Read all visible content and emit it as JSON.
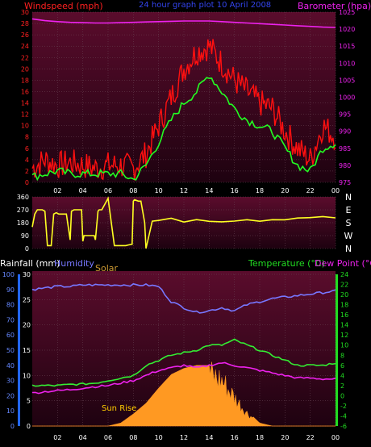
{
  "header": {
    "wind_label": "Windspeed (mph)",
    "subtitle": "24 hour graph plot   10 April 2008",
    "baro_label": "Barometer (hpa)"
  },
  "colors": {
    "bg_top": "#5a0c2c",
    "bg_bottom": "#1e0210",
    "grid": "#6b4a58",
    "wind": "#ff1010",
    "wind_avg": "#22ff22",
    "baro": "#ee22ee",
    "dir": "#ffff22",
    "humidity": "#7777ff",
    "temp": "#33ee33",
    "dew": "#ee22ee",
    "solar": "#ff9922",
    "rain_axis": "#2266ff",
    "temp_axis": "#22dd22"
  },
  "chart_data": [
    {
      "type": "line",
      "title": "24 hour graph plot 10 April 2008",
      "xlabel": "",
      "ticks_x": [
        "02",
        "04",
        "06",
        "08",
        "10",
        "12",
        "14",
        "16",
        "18",
        "20",
        "22",
        "00"
      ],
      "left_axis": {
        "label": "Windspeed (mph)",
        "ylim": [
          0,
          30
        ],
        "ticks": [
          "0",
          "2",
          "4",
          "6",
          "8",
          "10",
          "12",
          "14",
          "16",
          "18",
          "20",
          "22",
          "24",
          "26",
          "28",
          "30"
        ]
      },
      "right_axis": {
        "label": "Barometer (hpa)",
        "ylim": [
          975,
          1025
        ],
        "ticks": [
          "975",
          "980",
          "985",
          "990",
          "995",
          "1000",
          "1005",
          "1010",
          "1015",
          "1020",
          "1025"
        ]
      },
      "x_hours": [
        0,
        1,
        2,
        3,
        4,
        5,
        6,
        7,
        8,
        9,
        10,
        11,
        12,
        13,
        14,
        15,
        16,
        17,
        18,
        19,
        20,
        21,
        22,
        23,
        24
      ],
      "series": [
        {
          "name": "Windspeed (mph)",
          "axis": "left",
          "values": [
            2.5,
            4,
            3,
            3.5,
            3,
            2.5,
            3,
            3,
            2.5,
            5,
            10,
            15,
            20,
            23,
            24,
            21,
            18,
            16,
            14,
            13,
            9,
            6,
            4,
            10,
            8
          ]
        },
        {
          "name": "avg",
          "axis": "left",
          "values": [
            1,
            1.5,
            2,
            1.5,
            1.5,
            1.5,
            1.5,
            1.5,
            0.5,
            3,
            7,
            11,
            14,
            16,
            19,
            16,
            13,
            11,
            10,
            9,
            6,
            3,
            2,
            6,
            7
          ]
        },
        {
          "name": "Barometer (hpa)",
          "axis": "right",
          "values": [
            1023,
            1022.5,
            1022.2,
            1022,
            1021.9,
            1021.8,
            1021.8,
            1021.9,
            1022,
            1022.1,
            1022.2,
            1022.3,
            1022.4,
            1022.4,
            1022.4,
            1022.2,
            1022,
            1021.8,
            1021.6,
            1021.4,
            1021.2,
            1021,
            1020.8,
            1020.6,
            1020.5
          ]
        }
      ]
    },
    {
      "type": "line",
      "title": "",
      "ticks_x": [
        "02",
        "04",
        "06",
        "08",
        "10",
        "12",
        "14",
        "16",
        "18",
        "20",
        "22",
        "00"
      ],
      "left_axis": {
        "label": "",
        "ylim": [
          0,
          360
        ],
        "ticks": [
          "0",
          "90",
          "180",
          "270",
          "360"
        ]
      },
      "right_axis": {
        "label": "",
        "ticks": [
          "N",
          "W",
          "S",
          "E",
          "N"
        ]
      },
      "series": [
        {
          "name": "Wind direction",
          "x": [
            0,
            0.2,
            0.4,
            0.8,
            1.0,
            1.2,
            1.5,
            1.7,
            1.9,
            2.1,
            2.3,
            2.7,
            3.0,
            3.1,
            3.3,
            3.6,
            3.9,
            4.0,
            4.1,
            4.5,
            4.9,
            5.0,
            5.2,
            5.3,
            5.5,
            6.0,
            6.5,
            7.0,
            7.4,
            7.6,
            7.9,
            8.0,
            8.1,
            8.4,
            8.6,
            8.9,
            9.0,
            9.5,
            10,
            11,
            12,
            13,
            14,
            15,
            16,
            17,
            18,
            19,
            20,
            21,
            22,
            23,
            24
          ],
          "values": [
            150,
            240,
            270,
            270,
            260,
            20,
            20,
            240,
            250,
            240,
            240,
            240,
            60,
            260,
            270,
            270,
            270,
            50,
            90,
            90,
            90,
            60,
            260,
            270,
            270,
            350,
            20,
            20,
            20,
            25,
            30,
            330,
            340,
            330,
            330,
            180,
            0,
            190,
            195,
            200,
            195,
            205,
            200,
            195,
            200,
            205,
            200,
            205,
            210,
            215,
            220,
            215,
            215
          ]
        }
      ]
    },
    {
      "type": "line",
      "title": "",
      "ticks_x": [
        "02",
        "04",
        "06",
        "08",
        "10",
        "12",
        "14",
        "16",
        "18",
        "20",
        "22",
        "00"
      ],
      "legend": [
        "Rainfall (mm)",
        "Humidity",
        "Solar",
        "Temperature (°C)",
        "Dew Point (°C)"
      ],
      "annotations": [
        "Sun Rise"
      ],
      "left_axis_1": {
        "label": "Rainfall (mm)",
        "ticks": [
          "0",
          "10",
          "20",
          "30",
          "40",
          "50",
          "60",
          "70",
          "80",
          "90",
          "100"
        ]
      },
      "left_axis_2": {
        "ticks": [
          "0",
          "5",
          "10",
          "15",
          "20",
          "25",
          "30"
        ]
      },
      "right_axis": {
        "label": "Temperature (°C)",
        "ylim": [
          -6,
          24
        ],
        "ticks": [
          "-6",
          "-4",
          "-2",
          "0",
          "2",
          "4",
          "6",
          "8",
          "10",
          "12",
          "14",
          "16",
          "18",
          "20",
          "22",
          "24"
        ]
      },
      "x_hours": [
        0,
        1,
        2,
        3,
        4,
        5,
        6,
        7,
        8,
        9,
        10,
        11,
        12,
        13,
        14,
        15,
        16,
        17,
        18,
        19,
        20,
        21,
        22,
        23,
        24
      ],
      "series": [
        {
          "name": "Humidity",
          "axis": "left_pct",
          "values": [
            90,
            91,
            92,
            92,
            93,
            93,
            93,
            93,
            93,
            93,
            92,
            82,
            78,
            75,
            76,
            78,
            76,
            80,
            82,
            84,
            85,
            86,
            87,
            88,
            89
          ]
        },
        {
          "name": "Temperature (°C)",
          "axis": "right",
          "values": [
            2,
            2,
            2,
            2.2,
            2.3,
            2.5,
            3,
            3.5,
            4,
            6,
            7,
            8,
            8.5,
            9,
            10,
            10,
            11,
            10,
            9,
            8,
            7,
            6,
            6,
            6,
            6.5
          ]
        },
        {
          "name": "Dew Point (°C)",
          "axis": "right",
          "values": [
            0.5,
            0.8,
            1,
            1.2,
            1.5,
            1.8,
            2,
            2.5,
            3,
            4,
            5,
            5.5,
            6,
            5.5,
            6,
            6.5,
            6,
            5.5,
            5,
            4.5,
            4,
            3.5,
            3.5,
            3.3,
            3.3
          ]
        },
        {
          "name": "Solar",
          "axis": "left_pct",
          "values": [
            0,
            0,
            0,
            0,
            0,
            0,
            0,
            2,
            8,
            15,
            25,
            34,
            38,
            40,
            40,
            35,
            22,
            10,
            2,
            0,
            0,
            0,
            0,
            0,
            0
          ]
        }
      ]
    }
  ]
}
